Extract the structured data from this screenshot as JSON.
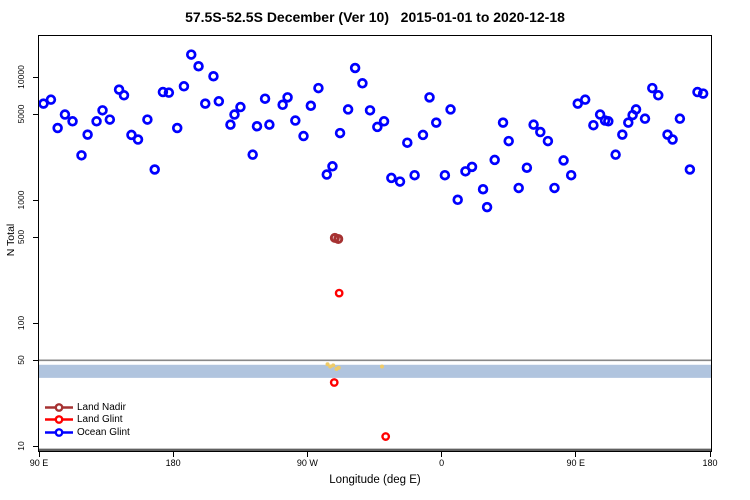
{
  "title": "57.5S-52.5S December (Ver 10)   2015-01-01 to 2020-12-18",
  "chart_data": {
    "type": "scatter",
    "title": "57.5S-52.5S December (Ver 10)   2015-01-01 to 2020-12-18",
    "xlabel": "Longitude (deg E)",
    "ylabel": "N Total",
    "x_axis": {
      "scale": "linear",
      "unit": "deg E (wrapped eastward from 90E)",
      "range_deg": [
        90,
        540
      ],
      "ticks": [
        {
          "deg": 90,
          "label": "90 E"
        },
        {
          "deg": 180,
          "label": "180"
        },
        {
          "deg": 270,
          "label": "90 W"
        },
        {
          "deg": 360,
          "label": "0"
        },
        {
          "deg": 450,
          "label": "90 E"
        },
        {
          "deg": 540,
          "label": "180"
        }
      ]
    },
    "y_axis": {
      "scale": "log10",
      "range": [
        8.5,
        22000
      ],
      "ticks": [
        {
          "value": 10000,
          "label": "10000"
        },
        {
          "value": 5000,
          "label": "5000"
        },
        {
          "value": 1000,
          "label": "1000"
        },
        {
          "value": 500,
          "label": "500"
        },
        {
          "value": 100,
          "label": "100"
        },
        {
          "value": 50,
          "label": "50"
        },
        {
          "value": 10,
          "label": "10"
        }
      ]
    },
    "grid": false,
    "reference_band": {
      "y_from": 36,
      "y_to": 46,
      "color": "#B0C4DE"
    },
    "reference_lines": [
      {
        "y": 50,
        "color": "#878787",
        "width": 1.6
      },
      {
        "y": 9.3,
        "color": "#606060",
        "width": 3
      }
    ],
    "series": [
      {
        "name": "Land Nadir",
        "color": "#A63232",
        "marker": "open-circle",
        "points_deg_n": [
          [
            288.4,
            495
          ],
          [
            290.7,
            485
          ]
        ]
      },
      {
        "name": "Land Glint",
        "color": "#FF0000",
        "marker": "open-circle",
        "points_deg_n": [
          [
            291.3,
            176
          ],
          [
            288.0,
            33
          ],
          [
            322.5,
            12
          ]
        ]
      },
      {
        "name": "Ocean Glint",
        "color": "#0000FF",
        "marker": "open-circle",
        "points_deg_n": [
          [
            93.0,
            6110
          ],
          [
            98.0,
            6580
          ],
          [
            102.5,
            3870
          ],
          [
            107.4,
            4980
          ],
          [
            112.5,
            4390
          ],
          [
            118.5,
            2320
          ],
          [
            122.6,
            3420
          ],
          [
            128.6,
            4390
          ],
          [
            132.6,
            5390
          ],
          [
            137.5,
            4530
          ],
          [
            143.7,
            7940
          ],
          [
            147.0,
            7140
          ],
          [
            152.0,
            3400
          ],
          [
            156.4,
            3120
          ],
          [
            162.7,
            4530
          ],
          [
            167.6,
            1780
          ],
          [
            173.1,
            7590
          ],
          [
            177.1,
            7500
          ],
          [
            182.7,
            3870
          ],
          [
            187.2,
            8450
          ],
          [
            192.1,
            15300
          ],
          [
            197.0,
            12300
          ],
          [
            201.5,
            6110
          ],
          [
            207.0,
            10200
          ],
          [
            210.6,
            6380
          ],
          [
            218.4,
            4120
          ],
          [
            221.1,
            4980
          ],
          [
            225.1,
            5730
          ],
          [
            233.3,
            2350
          ],
          [
            236.2,
            4000
          ],
          [
            241.6,
            6700
          ],
          [
            244.5,
            4120
          ],
          [
            253.4,
            5980
          ],
          [
            256.7,
            6870
          ],
          [
            261.9,
            4450
          ],
          [
            267.4,
            3330
          ],
          [
            272.3,
            5870
          ],
          [
            277.4,
            8170
          ],
          [
            283.0,
            1620
          ],
          [
            286.8,
            1890
          ],
          [
            291.9,
            3520
          ],
          [
            297.3,
            5480
          ],
          [
            302.0,
            11900
          ],
          [
            306.9,
            8940
          ],
          [
            312.0,
            5390
          ],
          [
            316.9,
            3950
          ],
          [
            321.4,
            4390
          ],
          [
            326.3,
            1520
          ],
          [
            332.1,
            1420
          ],
          [
            337.0,
            2940
          ],
          [
            341.9,
            1600
          ],
          [
            347.5,
            3400
          ],
          [
            351.9,
            6870
          ],
          [
            356.4,
            4280
          ],
          [
            362.2,
            1600
          ],
          [
            366.0,
            5480
          ],
          [
            370.8,
            1010
          ],
          [
            376.0,
            1720
          ],
          [
            380.4,
            1870
          ],
          [
            387.8,
            1230
          ],
          [
            390.5,
            880
          ],
          [
            395.6,
            2130
          ],
          [
            401.2,
            4280
          ],
          [
            405.0,
            3030
          ],
          [
            411.7,
            1260
          ],
          [
            417.2,
            1840
          ],
          [
            421.7,
            4120
          ],
          [
            426.2,
            3590
          ],
          [
            431.3,
            3030
          ],
          [
            435.7,
            1260
          ],
          [
            441.8,
            2110
          ],
          [
            446.9,
            1600
          ],
          [
            451.3,
            6110
          ],
          [
            456.3,
            6580
          ],
          [
            461.8,
            4080
          ],
          [
            466.3,
            4980
          ],
          [
            469.6,
            4450
          ],
          [
            471.8,
            4390
          ],
          [
            476.7,
            2350
          ],
          [
            481.2,
            3420
          ],
          [
            485.2,
            4280
          ],
          [
            488.1,
            4930
          ],
          [
            490.4,
            5480
          ],
          [
            496.4,
            4610
          ],
          [
            501.3,
            8170
          ],
          [
            505.3,
            7140
          ],
          [
            511.5,
            3420
          ],
          [
            514.9,
            3120
          ],
          [
            519.8,
            4610
          ],
          [
            526.5,
            1780
          ],
          [
            531.6,
            7590
          ],
          [
            535.4,
            7370
          ]
        ]
      }
    ],
    "unlabeled_yellow_marks": {
      "color": "#EFCB68",
      "points_deg_n": [
        [
          283.5,
          46.5
        ],
        [
          285.3,
          44.5
        ],
        [
          287.3,
          45.5
        ],
        [
          289.5,
          42.5
        ],
        [
          291.0,
          43.5
        ],
        [
          320.0,
          44.5
        ]
      ]
    },
    "legend": {
      "position": "bottom-left",
      "items": [
        {
          "label": "Land Nadir",
          "color": "#A63232"
        },
        {
          "label": "Land Glint",
          "color": "#FF0000"
        },
        {
          "label": "Ocean Glint",
          "color": "#0000FF"
        }
      ]
    }
  }
}
